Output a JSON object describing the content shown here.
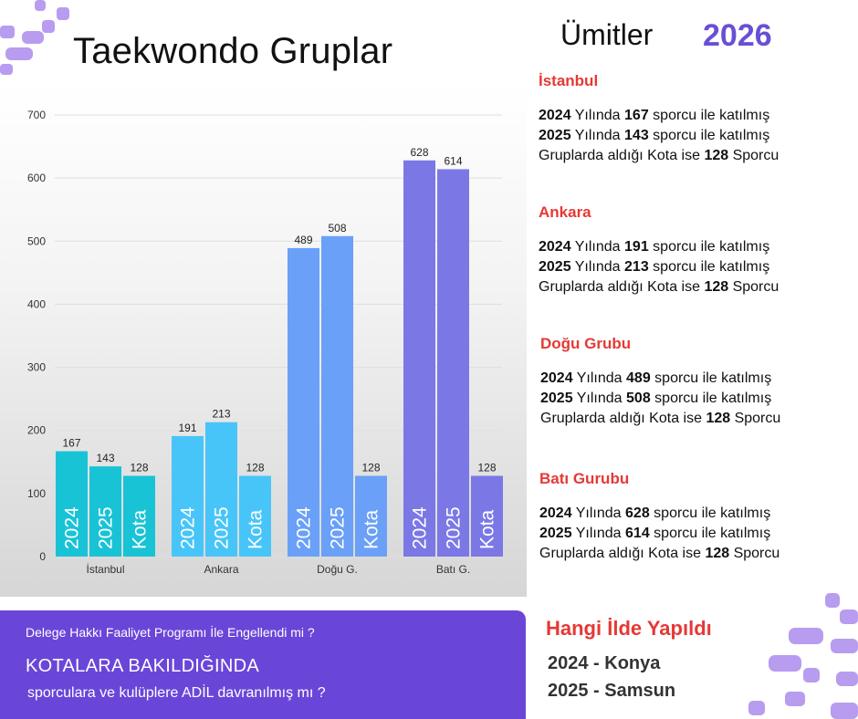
{
  "header": {
    "title": "Taekwondo Gruplar",
    "subtitle": "Ümitler",
    "year": "2026"
  },
  "colors": {
    "accent": "#6a46d8",
    "heading_red": "#e53935"
  },
  "chart_data": {
    "type": "bar",
    "categories": [
      "İstanbul",
      "Ankara",
      "Doğu G.",
      "Batı G."
    ],
    "series": [
      {
        "name": "2024",
        "values": [
          167,
          191,
          489,
          628
        ]
      },
      {
        "name": "2025",
        "values": [
          143,
          213,
          508,
          614
        ]
      },
      {
        "name": "Kota",
        "values": [
          128,
          128,
          128,
          128
        ]
      }
    ],
    "group_colors": [
      "#19c3d6",
      "#48c5f8",
      "#6aa0f7",
      "#7b78e6"
    ],
    "ylim": [
      0,
      700
    ],
    "yticks": [
      "0",
      "100",
      "200",
      "300",
      "400",
      "500",
      "600",
      "700"
    ],
    "grid": true
  },
  "groups": [
    {
      "heading": "İstanbul",
      "l1_a": "2024",
      "l1_b": " Yılında ",
      "l1_c": "167",
      "l1_d": " sporcu ile katılmış",
      "l2_a": "2025",
      "l2_b": " Yılında ",
      "l2_c": "143",
      "l2_d": " sporcu ile katılmış",
      "l3_a": "Gruplarda aldığı Kota ise ",
      "l3_b": "128",
      "l3_c": " Sporcu"
    },
    {
      "heading": "Ankara",
      "l1_a": "2024",
      "l1_b": " Yılında ",
      "l1_c": "191",
      "l1_d": " sporcu ile katılmış",
      "l2_a": "2025",
      "l2_b": " Yılında ",
      "l2_c": "213",
      "l2_d": " sporcu ile katılmış",
      "l3_a": "Gruplarda aldığı Kota ise ",
      "l3_b": "128",
      "l3_c": " Sporcu"
    },
    {
      "heading": "Doğu Grubu",
      "l1_a": "2024",
      "l1_b": " Yılında ",
      "l1_c": "489",
      "l1_d": " sporcu ile katılmış",
      "l2_a": "2025",
      "l2_b": " Yılında ",
      "l2_c": "508",
      "l2_d": " sporcu ile katılmış",
      "l3_a": "Gruplarda aldığı Kota ise ",
      "l3_b": "128",
      "l3_c": " Sporcu"
    },
    {
      "heading": "Batı Gurubu",
      "l1_a": "2024",
      "l1_b": " Yılında ",
      "l1_c": "628",
      "l1_d": " sporcu ile katılmış",
      "l2_a": "2025",
      "l2_b": " Yılında ",
      "l2_c": "614",
      "l2_d": " sporcu ile katılmış",
      "l3_a": "Gruplarda aldığı Kota ise ",
      "l3_b": "128",
      "l3_c": " Sporcu"
    }
  ],
  "banner": {
    "line1": "Delege Hakkı Faaliyet Programı İle Engellendi mi ?",
    "line2": "KOTALARA BAKILDIĞINDA",
    "line3": "sporculara ve kulüplere ADİL davranılmış mı ?"
  },
  "venue": {
    "heading": "Hangi İlde Yapıldı",
    "line1": "2024 - Konya",
    "line2": "2025 - Samsun"
  }
}
